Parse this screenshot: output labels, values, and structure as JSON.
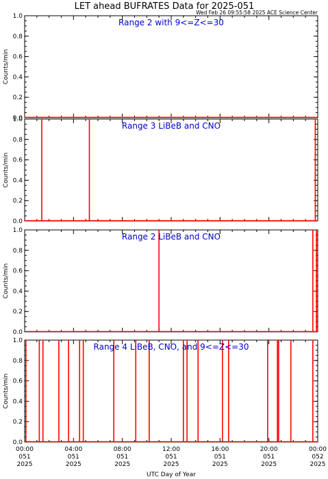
{
  "title": "LET ahead BUFRATES Data for 2025-051",
  "timestamp": "Wed Feb 26 09:55:58 2025 ACE Science Center",
  "colors": {
    "series": "#ff0000",
    "label": "#0000cc",
    "axes": "#000000"
  },
  "chart_data": {
    "type": "line",
    "xlabel": "UTC Day of Year",
    "ylabel": "Counts/min",
    "xlim": [
      0,
      24
    ],
    "ylim": [
      0,
      1.0
    ],
    "yticks": [
      "0.0",
      "0.2",
      "0.4",
      "0.6",
      "0.8",
      "1.0"
    ],
    "xticks": [
      {
        "hour": 0,
        "lines": [
          "00:00",
          "051",
          "2025"
        ]
      },
      {
        "hour": 4,
        "lines": [
          "04:00",
          "051",
          "2025"
        ]
      },
      {
        "hour": 8,
        "lines": [
          "08:00",
          "051",
          "2025"
        ]
      },
      {
        "hour": 12,
        "lines": [
          "12:00",
          "051",
          "2025"
        ]
      },
      {
        "hour": 16,
        "lines": [
          "16:00",
          "051",
          "2025"
        ]
      },
      {
        "hour": 20,
        "lines": [
          "20:00",
          "051",
          "2025"
        ]
      },
      {
        "hour": 24,
        "lines": [
          "00:00",
          "052",
          "2025"
        ]
      }
    ],
    "panels": [
      {
        "label": "Range 2 with 9<=Z<=30",
        "spikes": []
      },
      {
        "label": "Range 3 LiBeB and CNO",
        "spikes": [
          1.4,
          5.3,
          23.8
        ]
      },
      {
        "label": "Range 2 LiBeB and CNO",
        "spikes": [
          11.0,
          23.6,
          23.9
        ]
      },
      {
        "label": "Range 4 LiBeB, CNO, and 9<=Z<=30",
        "spikes": [
          0.1,
          1.2,
          1.5,
          2.8,
          3.6,
          4.5,
          4.8,
          7.3,
          9.1,
          10.2,
          13.0,
          13.3,
          14.2,
          16.2,
          16.7,
          19.9,
          20.7,
          20.8,
          21.8,
          23.6
        ]
      }
    ]
  }
}
